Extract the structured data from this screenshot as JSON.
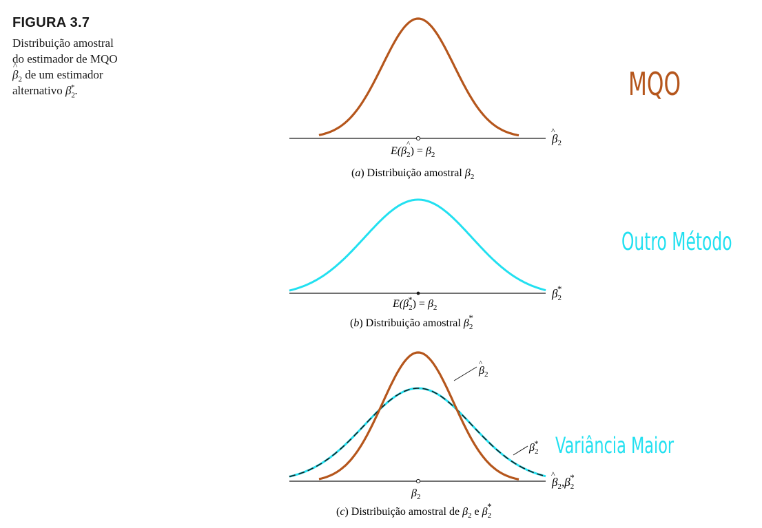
{
  "caption": {
    "label": "FIGURA 3.7",
    "line1": "Distribuição amostral",
    "line2": "do estimador de MQO",
    "line3_sym": "β",
    "line3_sub": "2",
    "line3_rest": " de um estimador",
    "line4_pre": "alternativo ",
    "line4_sym": "β",
    "line4_sub": "2",
    "line4_sup": "*",
    "line4_post": "."
  },
  "panels": {
    "a": {
      "axis_sym": "β",
      "axis_sub": "2",
      "mean_pre": "E(",
      "mean_sym": "β",
      "mean_sub": "2",
      "mean_post": ") = ",
      "mean_rhs_sym": "β",
      "mean_rhs_sub": "2",
      "sub_pre": "(",
      "sub_letter": "a",
      "sub_mid": ") Distribuição amostral ",
      "sub_sym": "β",
      "sub_sub": "2"
    },
    "b": {
      "axis_sym": "β",
      "axis_sub": "2",
      "axis_sup": "*",
      "mean_pre": "E(",
      "mean_sym": "β",
      "mean_sub": "2",
      "mean_sup": "*",
      "mean_post": ") = ",
      "mean_rhs_sym": "β",
      "mean_rhs_sub": "2",
      "sub_pre": "(",
      "sub_letter": "b",
      "sub_mid": ") Distribuição amostral ",
      "sub_sym": "β",
      "sub_sub": "2",
      "sub_sup": "*"
    },
    "c": {
      "axis_sym1": "β",
      "axis_sub1": "2",
      "axis_sep": ",",
      "axis_sym2": "β",
      "axis_sub2": "2",
      "axis_sup2": "*",
      "mean_sym": "β",
      "mean_sub": "2",
      "curve1_sym": "β",
      "curve1_sub": "2",
      "curve2_sym": "β",
      "curve2_sub": "2",
      "curve2_sup": "*",
      "sub_pre": "(",
      "sub_letter": "c",
      "sub_mid": ") Distribuição amostral de ",
      "sub_sym1": "β",
      "sub_sub1": "2",
      "sub_and": " e ",
      "sub_sym2": "β",
      "sub_sub2": "2",
      "sub_sup2": "*"
    }
  },
  "annotations": {
    "mqo": "MQO",
    "outro_metodo": "Outro Método",
    "variancia_maior": "Variância Maior"
  },
  "colors": {
    "ols_curve": "#b5561c",
    "alt_curve": "#22e0f0",
    "ink": "#1a1a1a",
    "annot_brown": "#b5561c",
    "annot_cyan": "#22e0f0"
  }
}
